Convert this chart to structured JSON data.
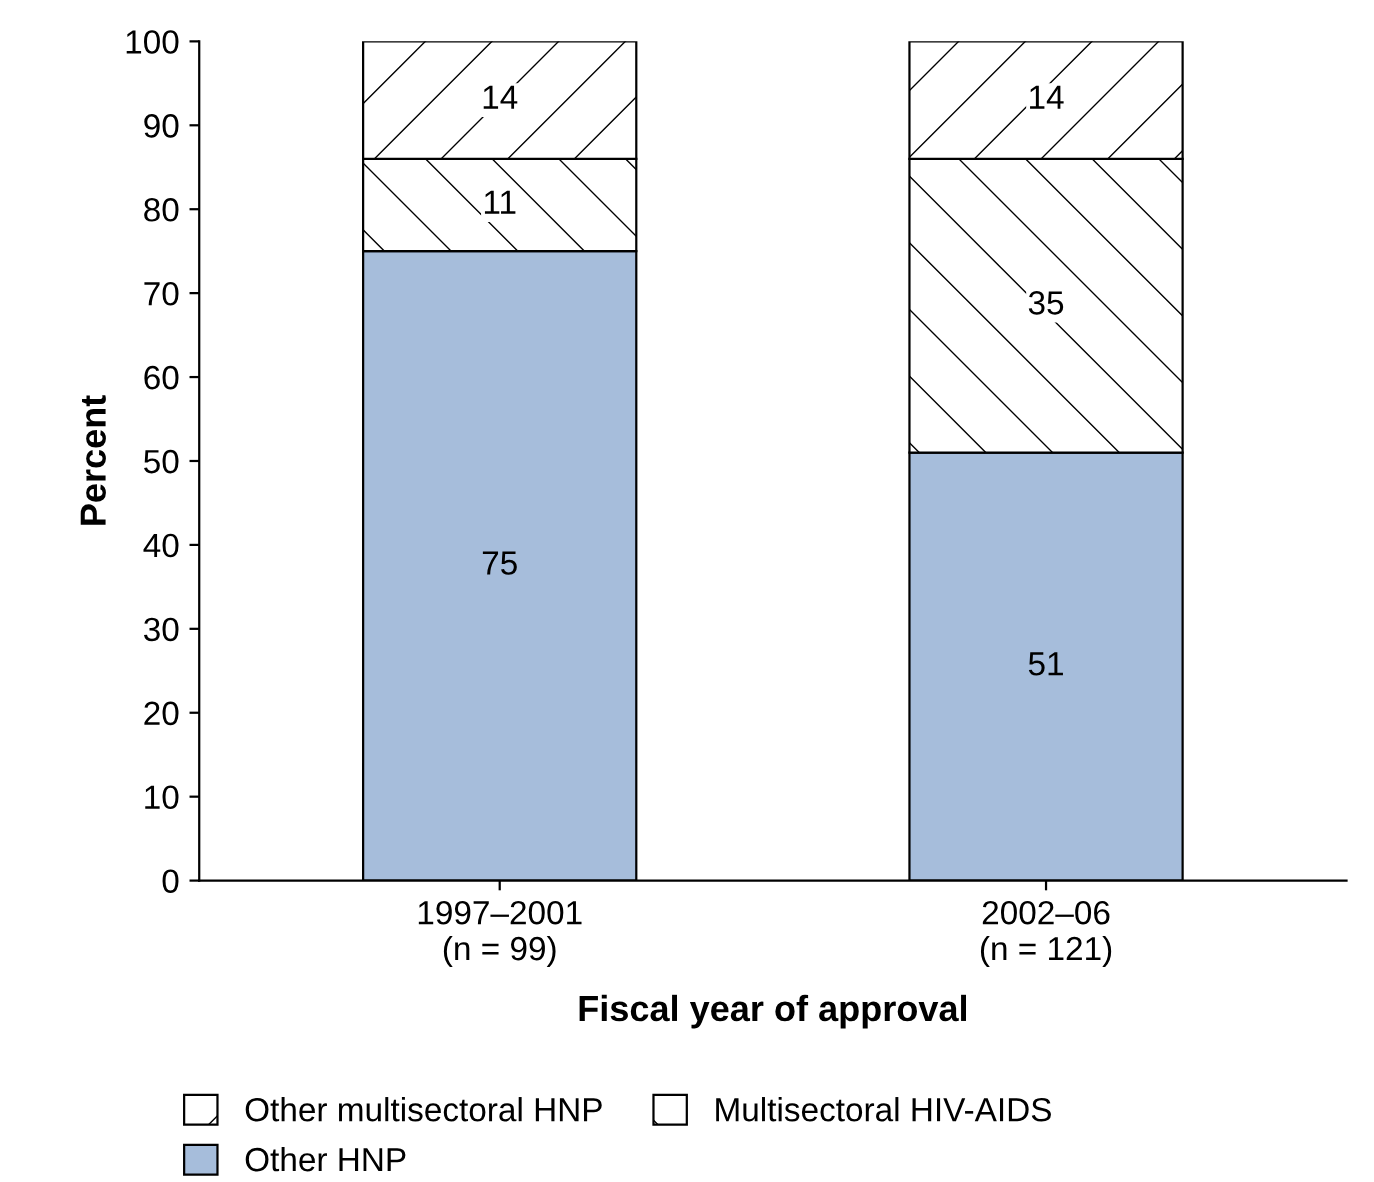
{
  "chart_data": {
    "type": "bar",
    "stacked": true,
    "categories": [
      "1997–2001\n(n = 99)",
      "2002–06\n(n = 121)"
    ],
    "series": [
      {
        "name": "Other HNP",
        "color": "#a6bddb",
        "values": [
          75,
          51
        ]
      },
      {
        "name": "Multisectoral HIV-AIDS",
        "color": "#ffffff",
        "values": [
          11,
          35
        ]
      },
      {
        "name": "Other multisectoral HNP",
        "color": "#ffffff",
        "values": [
          14,
          14
        ]
      }
    ],
    "xlabel": "Fiscal year of approval",
    "ylabel": "Percent",
    "ylim": [
      0,
      100
    ],
    "yticks": [
      0,
      10,
      20,
      30,
      40,
      50,
      60,
      70,
      80,
      90,
      100
    ],
    "data_labels": true,
    "legend": "bottom"
  }
}
